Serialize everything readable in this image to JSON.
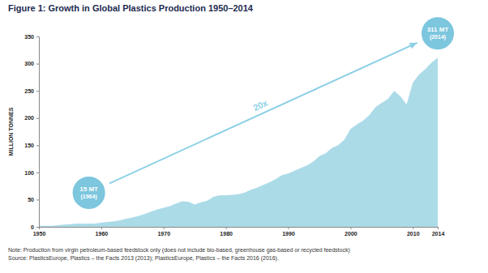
{
  "chart_data": {
    "type": "area",
    "title": "Figure 1: Growth in Global Plastics Production 1950–2014",
    "y_label": "MILLION TONNES",
    "x": [
      1950,
      1951,
      1952,
      1953,
      1954,
      1955,
      1956,
      1957,
      1958,
      1959,
      1960,
      1961,
      1962,
      1963,
      1964,
      1965,
      1966,
      1967,
      1968,
      1969,
      1970,
      1971,
      1972,
      1973,
      1974,
      1975,
      1976,
      1977,
      1978,
      1979,
      1980,
      1981,
      1982,
      1983,
      1984,
      1985,
      1986,
      1987,
      1988,
      1989,
      1990,
      1991,
      1992,
      1993,
      1994,
      1995,
      1996,
      1997,
      1998,
      1999,
      2000,
      2001,
      2002,
      2003,
      2004,
      2005,
      2006,
      2007,
      2008,
      2009,
      2010,
      2011,
      2012,
      2013,
      2014
    ],
    "values": [
      2,
      2,
      2,
      3,
      4,
      5,
      6,
      6,
      6,
      6,
      8,
      9,
      10,
      12,
      15,
      17,
      20,
      24,
      28,
      32,
      35,
      38,
      43,
      47,
      46,
      41,
      45,
      48,
      55,
      58,
      58,
      59,
      60,
      63,
      68,
      72,
      77,
      82,
      88,
      95,
      98,
      103,
      108,
      113,
      120,
      130,
      135,
      145,
      150,
      160,
      180,
      188,
      195,
      205,
      220,
      228,
      235,
      250,
      240,
      225,
      265,
      280,
      290,
      302,
      311
    ],
    "color": "#acdbe8",
    "xlim": [
      1950,
      2014
    ],
    "xticks": [
      1950,
      1960,
      1970,
      1980,
      1990,
      2000,
      2010,
      2014
    ],
    "ylim": [
      0,
      350
    ],
    "yticks": [
      0,
      50,
      100,
      150,
      200,
      250,
      300,
      350
    ],
    "grid": false,
    "annotations": [
      {
        "lines": [
          "15 MT",
          "(1964)"
        ],
        "x": 1964,
        "y": 15
      },
      {
        "lines": [
          "311 MT",
          "(2014)"
        ],
        "x": 2014,
        "y": 311
      }
    ],
    "arrow_label": "20x",
    "note": "Note: Production from virgin petroleum-based feedstock only (does not include bio-based, greenhouse gas-based or recycled feedstock)",
    "source": "Source: PlasticsEurope, Plastics – the Facts 2013 (2013); PlasticsEurope, Plastics – the Facts 2016 (2016)."
  }
}
